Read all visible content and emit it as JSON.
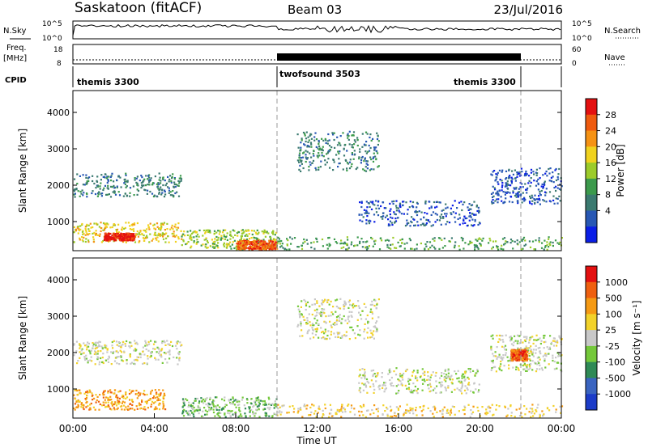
{
  "header": {
    "station": "Saskatoon (fitACF)",
    "beam": "Beam 03",
    "date": "23/Jul/2016"
  },
  "top_panels": {
    "nsky_label": "N.Sky",
    "nsky_ticks": [
      "10^5",
      "10^0"
    ],
    "nsearch_label": "N.Search",
    "nsearch_ticks": [
      "10^5",
      "10^0"
    ],
    "freq_label_1": "Freq.",
    "freq_label_2": "[MHz]",
    "freq_ticks": [
      "18",
      "8"
    ],
    "nave_label": "Nave",
    "nave_ticks": [
      "60",
      "0"
    ],
    "cpid_label": "CPID",
    "cpid_segments": [
      "themis 3300",
      "twofsound 3503",
      "themis 3300"
    ]
  },
  "chart_data": [
    {
      "type": "heatmap",
      "title": "",
      "xlabel": "Time UT",
      "ylabel": "Slant Range [km]",
      "xlim": [
        0,
        24
      ],
      "ylim": [
        200,
        4600
      ],
      "x_tick_labels": [
        "00:00",
        "04:00",
        "08:00",
        "12:00",
        "16:00",
        "20:00",
        "00:00"
      ],
      "y_ticks": [
        1000,
        2000,
        3000,
        4000
      ],
      "colorbar": {
        "label": "Power [dB]",
        "ticks": [
          "28",
          "24",
          "20",
          "16",
          "12",
          "8",
          "4"
        ],
        "colors": [
          "#0a1ee6",
          "#2858b4",
          "#3b7a70",
          "#3c9a4c",
          "#9ccb2a",
          "#f0d21e",
          "#f59214",
          "#ef5a0e",
          "#e41010"
        ]
      },
      "scatter_regions": [
        {
          "t0": 0.0,
          "t1": 5.3,
          "r0": 1700,
          "r1": 2350,
          "level": 2
        },
        {
          "t0": 0.0,
          "t1": 5.3,
          "r0": 450,
          "r1": 1000,
          "level": 5
        },
        {
          "t0": 1.5,
          "t1": 3.0,
          "r0": 500,
          "r1": 700,
          "level": 8
        },
        {
          "t0": 5.3,
          "t1": 10.0,
          "r0": 250,
          "r1": 800,
          "level": 4
        },
        {
          "t0": 8.0,
          "t1": 10.0,
          "r0": 250,
          "r1": 500,
          "level": 7
        },
        {
          "t0": 10.0,
          "t1": 24.0,
          "r0": 250,
          "r1": 600,
          "level": 3
        },
        {
          "t0": 11.0,
          "t1": 15.0,
          "r0": 2400,
          "r1": 3500,
          "level": 2
        },
        {
          "t0": 14.0,
          "t1": 20.0,
          "r0": 900,
          "r1": 1600,
          "level": 1
        },
        {
          "t0": 20.5,
          "t1": 24.0,
          "r0": 1500,
          "r1": 2500,
          "level": 1
        }
      ]
    },
    {
      "type": "heatmap",
      "title": "",
      "xlabel": "Time UT",
      "ylabel": "Slant Range [km]",
      "xlim": [
        0,
        24
      ],
      "ylim": [
        200,
        4600
      ],
      "x_tick_labels": [
        "00:00",
        "04:00",
        "08:00",
        "12:00",
        "16:00",
        "20:00",
        "00:00"
      ],
      "y_ticks": [
        1000,
        2000,
        3000,
        4000
      ],
      "colorbar": {
        "label": "Velocity [m s⁻¹]",
        "ticks": [
          "1000",
          "500",
          "100",
          "25",
          "-25",
          "-100",
          "-500",
          "-1000"
        ],
        "colors": [
          "#1c3cc8",
          "#3a64c0",
          "#2f8a56",
          "#74c83a",
          "#c8c8c8",
          "#f2d22a",
          "#f59a14",
          "#ef6010",
          "#e41010"
        ]
      },
      "scatter_regions": [
        {
          "t0": 0.0,
          "t1": 5.3,
          "r0": 1700,
          "r1": 2350,
          "level": 4
        },
        {
          "t0": 0.0,
          "t1": 4.5,
          "r0": 450,
          "r1": 1000,
          "level": 6
        },
        {
          "t0": 5.3,
          "t1": 10.0,
          "r0": 250,
          "r1": 800,
          "level": 3
        },
        {
          "t0": 10.0,
          "t1": 24.0,
          "r0": 250,
          "r1": 600,
          "level": 5
        },
        {
          "t0": 11.0,
          "t1": 15.0,
          "r0": 2400,
          "r1": 3500,
          "level": 4
        },
        {
          "t0": 14.0,
          "t1": 20.0,
          "r0": 900,
          "r1": 1600,
          "level": 4
        },
        {
          "t0": 20.5,
          "t1": 24.0,
          "r0": 1500,
          "r1": 2500,
          "level": 4
        },
        {
          "t0": 21.5,
          "t1": 22.3,
          "r0": 1800,
          "r1": 2100,
          "level": 7
        }
      ]
    }
  ]
}
